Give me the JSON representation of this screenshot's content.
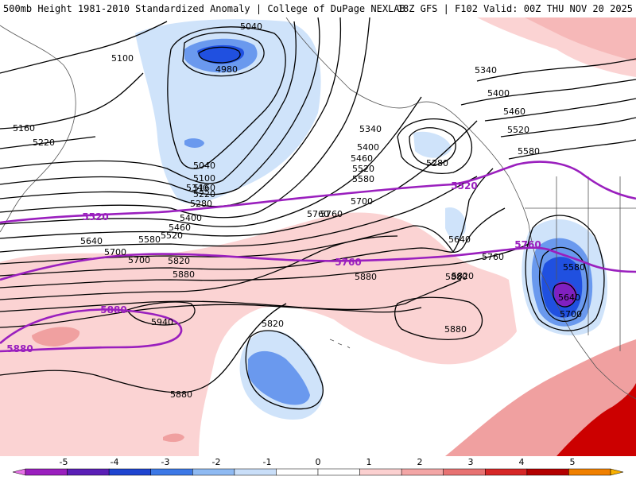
{
  "header": {
    "title_left": "500mb Height 1981-2010 Standardized Anomaly | College of DuPage NEXLAB",
    "title_right": "18Z GFS | F102 Valid: 00Z THU NOV 20 2025"
  },
  "map": {
    "contour_labels": [
      "5040",
      "4980",
      "5100",
      "5160",
      "5220",
      "5040",
      "5100",
      "5160",
      "5220",
      "5280",
      "5340",
      "5400",
      "5460",
      "5520",
      "5580",
      "5640",
      "5700",
      "5700",
      "5760",
      "5820",
      "5880",
      "5940",
      "5820",
      "5880",
      "5880",
      "5880",
      "5880",
      "5340",
      "5400",
      "5460",
      "5520",
      "5580",
      "5280",
      "5640",
      "5700",
      "5760",
      "5820",
      "5400",
      "5460",
      "5520",
      "5580",
      "5340",
      "5760",
      "5580",
      "5640",
      "5700"
    ],
    "highlight_labels": [
      "5520",
      "5520",
      "5760",
      "5760",
      "5880",
      "5880"
    ],
    "colors": {
      "strong_positive": "#cc0000",
      "positive": "#f0a0a0",
      "weak_positive": "#fbd3d3",
      "weak_negative": "#cfe3fa",
      "negative": "#6a99ee",
      "strong_negative": "#2050e0",
      "extreme_negative": "#8020c0",
      "highlight_contour": "#9a1fbe"
    }
  },
  "colorbar": {
    "tick_labels": [
      "-5",
      "-4",
      "-3",
      "-2",
      "-1",
      "0",
      "1",
      "2",
      "3",
      "4",
      "5"
    ],
    "segment_colors": [
      "#e872e8",
      "#9a1fbe",
      "#5a1fb6",
      "#1f45d0",
      "#3c78e6",
      "#8fbaf2",
      "#c9def8",
      "#ffffff",
      "#ffffff",
      "#fbd0d0",
      "#f3a6a6",
      "#e77272",
      "#d62727",
      "#b30000",
      "#f08000",
      "#f8b000"
    ]
  }
}
